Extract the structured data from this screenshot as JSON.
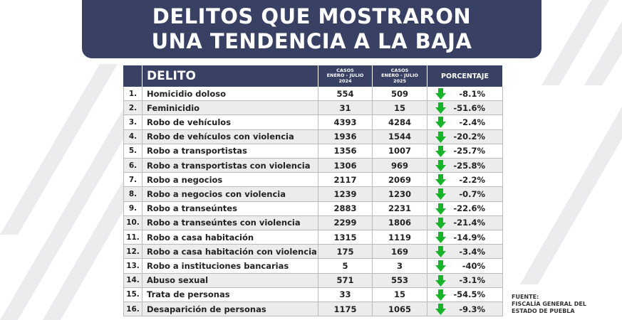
{
  "header": {
    "title_lines": [
      "DELITOS QUE MOSTRARON",
      "UNA TENDENCIA A LA BAJA"
    ]
  },
  "table": {
    "columns": {
      "delito": "DELITO",
      "y2024": [
        "CASOS",
        "ENERO - JULIO",
        "2024"
      ],
      "y2025": [
        "CASOS",
        "ENERO - JULIO",
        "2025"
      ],
      "porcentaje": "PORCENTAJE"
    },
    "rows": [
      [
        "1.",
        "Homicidio doloso",
        "554",
        "509",
        "-8.1%"
      ],
      [
        "2.",
        "Feminicidio",
        "31",
        "15",
        "-51.6%"
      ],
      [
        "3.",
        "Robo de vehículos",
        "4393",
        "4284",
        "-2.4%"
      ],
      [
        "4.",
        "Robo de vehículos con violencia",
        "1936",
        "1544",
        "-20.2%"
      ],
      [
        "5.",
        "Robo a transportistas",
        "1356",
        "1007",
        "-25.7%"
      ],
      [
        "6.",
        "Robo a transportistas con violencia",
        "1306",
        "969",
        "-25.8%"
      ],
      [
        "7.",
        "Robo a negocios",
        "2117",
        "2069",
        "-2.2%"
      ],
      [
        "8.",
        "Robo a negocios con violencia",
        "1239",
        "1230",
        "-0.7%"
      ],
      [
        "9.",
        "Robo a transeúntes",
        "2883",
        "2231",
        "-22.6%"
      ],
      [
        "10.",
        "Robo a transeúntes con violencia",
        "2299",
        "1806",
        "-21.4%"
      ],
      [
        "11.",
        "Robo a casa habitación",
        "1315",
        "1119",
        "-14.9%"
      ],
      [
        "12.",
        "Robo a casa habitación con violencia",
        "175",
        "169",
        "-3.4%"
      ],
      [
        "13.",
        "Robo a instituciones bancarias",
        "5",
        "3",
        "-40%"
      ],
      [
        "14.",
        "Abuso sexual",
        "571",
        "553",
        "-3.1%"
      ],
      [
        "15.",
        "Trata de personas",
        "33",
        "15",
        "-54.5%"
      ],
      [
        "16.",
        "Desaparición de personas",
        "1175",
        "1065",
        "-9.3%"
      ]
    ]
  },
  "source": {
    "lines": [
      "FUENTE:",
      "FISCALÍA GENERAL DEL",
      "ESTADO DE PUEBLA"
    ]
  }
}
